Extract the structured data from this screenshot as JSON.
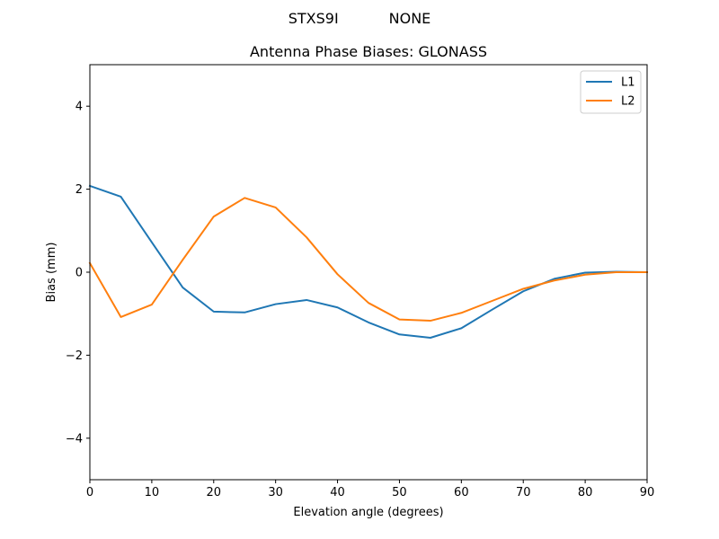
{
  "suptitle": "STXS9I           NONE",
  "chart_data": {
    "type": "line",
    "title": "Antenna Phase Biases: GLONASS",
    "xlabel": "Elevation angle (degrees)",
    "ylabel": "Bias (mm)",
    "xlim": [
      0,
      90
    ],
    "ylim": [
      -5,
      5
    ],
    "xticks": [
      0,
      10,
      20,
      30,
      40,
      50,
      60,
      70,
      80,
      90
    ],
    "yticks": [
      -4,
      -2,
      0,
      2,
      4
    ],
    "xtick_labels": [
      "0",
      "10",
      "20",
      "30",
      "40",
      "50",
      "60",
      "70",
      "80",
      "90"
    ],
    "ytick_labels": [
      "−4",
      "−2",
      "0",
      "2",
      "4"
    ],
    "grid": false,
    "legend_position": "top-right",
    "x": [
      0,
      5,
      10,
      15,
      20,
      25,
      30,
      35,
      40,
      45,
      50,
      55,
      60,
      65,
      70,
      75,
      80,
      85,
      90
    ],
    "series": [
      {
        "name": "L1",
        "color": "#1f77b4",
        "values": [
          2.08,
          1.82,
          0.72,
          -0.37,
          -0.95,
          -0.97,
          -0.77,
          -0.67,
          -0.85,
          -1.21,
          -1.5,
          -1.58,
          -1.35,
          -0.9,
          -0.46,
          -0.16,
          -0.01,
          0.01,
          0.0
        ]
      },
      {
        "name": "L2",
        "color": "#ff7f0e",
        "values": [
          0.22,
          -1.08,
          -0.78,
          0.3,
          1.34,
          1.79,
          1.56,
          0.84,
          -0.05,
          -0.74,
          -1.14,
          -1.17,
          -0.98,
          -0.69,
          -0.4,
          -0.2,
          -0.06,
          0.0,
          0.0
        ]
      }
    ]
  }
}
